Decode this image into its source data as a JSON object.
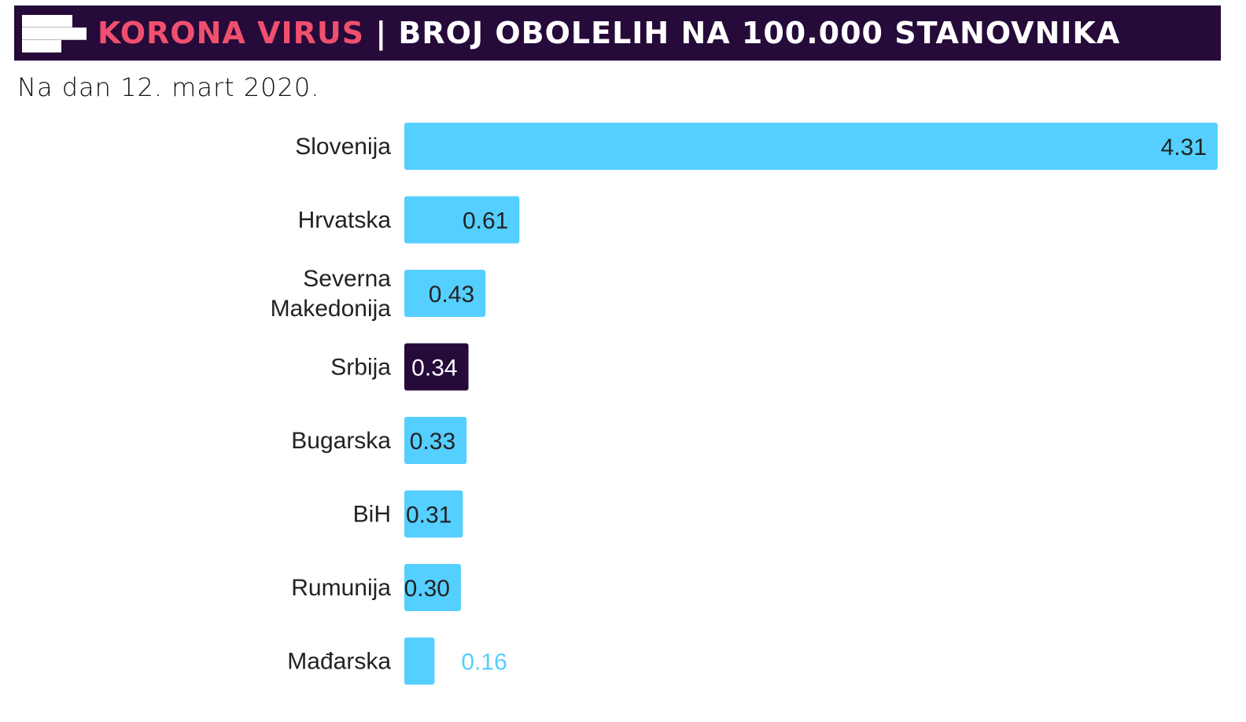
{
  "header": {
    "highlight": "KORONA VIRUS",
    "title": " | BROJ OBOLELIH NA 100.000 STANOVNIKA",
    "logo_icon": "stacked-bars-logo-icon"
  },
  "subtitle": "Na dan 12. mart 2020.",
  "colors": {
    "header_bg": "#250a3a",
    "highlight": "#f0506e",
    "bar": "#55cfff",
    "bar_highlight": "#250a3a"
  },
  "chart_data": {
    "type": "bar",
    "orientation": "horizontal",
    "categories": [
      "Slovenija",
      "Hrvatska",
      "Severna Makedonija",
      "Srbija",
      "Bugarska",
      "BiH",
      "Rumunija",
      "Mađarska"
    ],
    "values": [
      4.31,
      0.61,
      0.43,
      0.34,
      0.33,
      0.31,
      0.3,
      0.16
    ],
    "value_labels": [
      "4.31",
      "0.61",
      "0.43",
      "0.34",
      "0.33",
      "0.31",
      "0.30",
      "0.16"
    ],
    "highlighted_category": "Srbija",
    "xlim": [
      0,
      4.31
    ],
    "grid": false,
    "legend": "none"
  }
}
